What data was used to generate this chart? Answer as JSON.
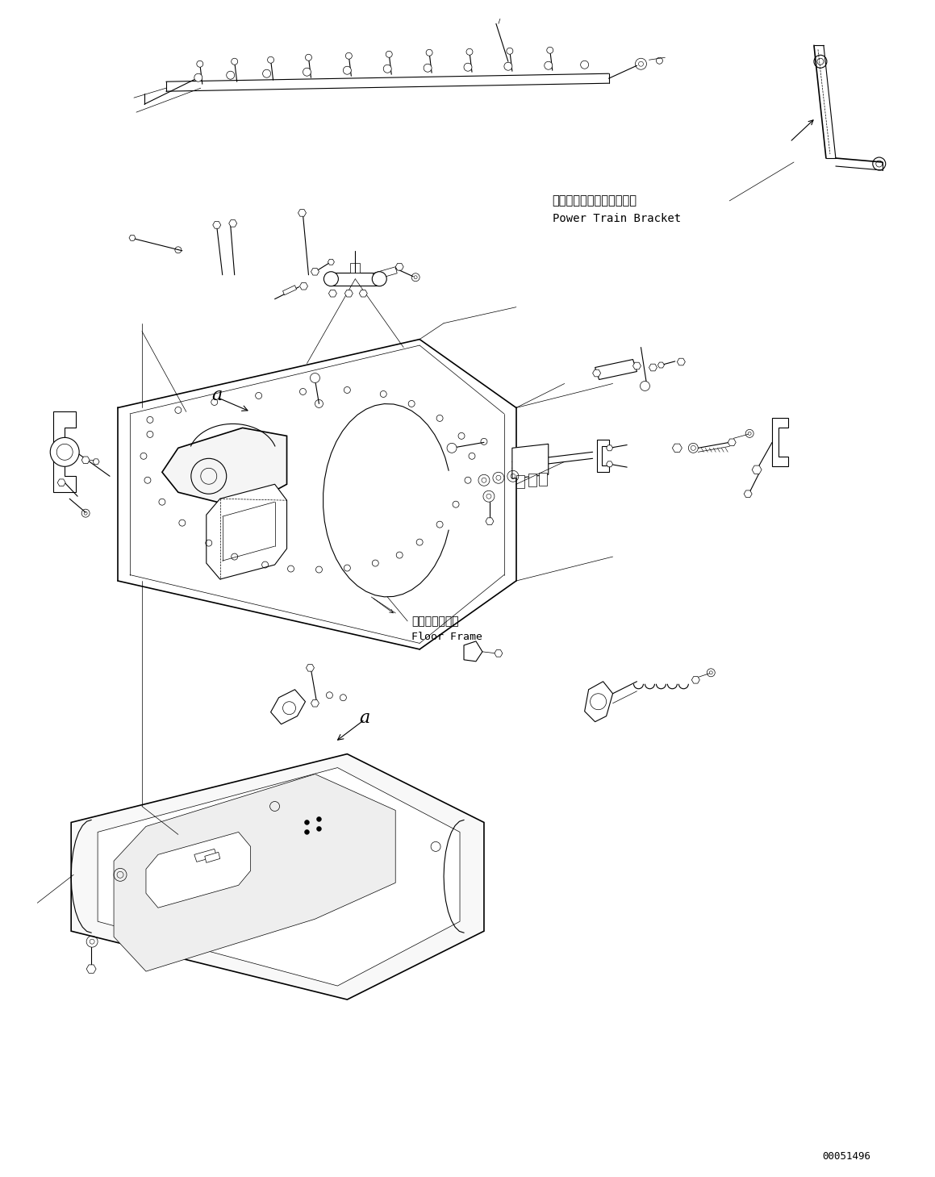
{
  "bg_color": "#ffffff",
  "fig_width": 11.59,
  "fig_height": 14.59,
  "dpi": 100,
  "labels": {
    "power_train_jp": "パワートレインブラケット",
    "power_train_en": "Power Train Bracket",
    "floor_frame_jp": "フロアフレーム",
    "floor_frame_en": "Floor Frame",
    "ref_a": "a",
    "doc_number": "00051496"
  }
}
